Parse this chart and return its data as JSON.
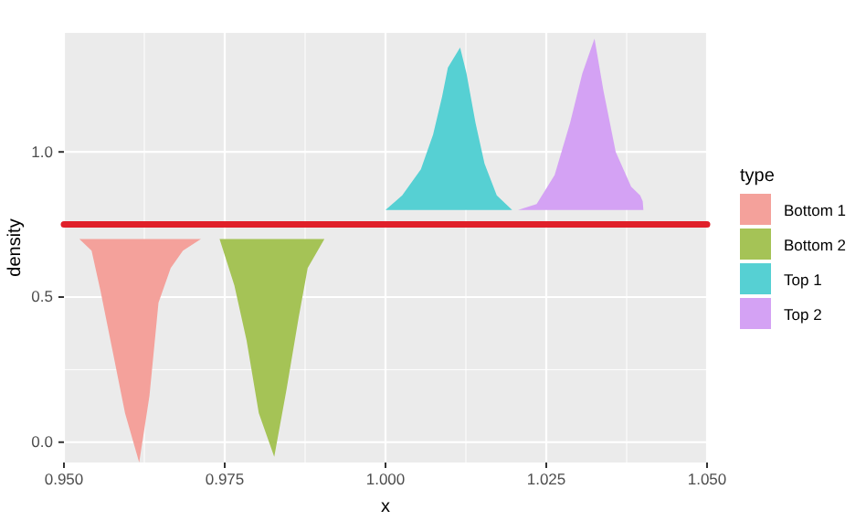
{
  "chart_data": {
    "type": "area",
    "xlabel": "x",
    "ylabel": "density",
    "legend_title": "type",
    "legend": "right",
    "grid": true,
    "xlim": [
      0.95,
      1.05
    ],
    "ylim": [
      -0.07,
      1.41
    ],
    "xticks": [
      {
        "value": 0.95,
        "label": "0.950"
      },
      {
        "value": 0.975,
        "label": "0.975"
      },
      {
        "value": 1.0,
        "label": "1.000"
      },
      {
        "value": 1.025,
        "label": "1.025"
      },
      {
        "value": 1.05,
        "label": "1.050"
      }
    ],
    "yticks": [
      {
        "value": 0,
        "label": "0.0"
      },
      {
        "value": 0.5,
        "label": "0.5"
      },
      {
        "value": 1.0,
        "label": "1.0"
      }
    ],
    "ref_lines": [
      {
        "axis": "y",
        "value": 0.75,
        "color": "#e0202a"
      }
    ],
    "series": [
      {
        "name": "Bottom 1",
        "color": "#f4a19b",
        "x": [
          0.9524,
          0.9543,
          0.9557,
          0.9576,
          0.9595,
          0.9617,
          0.9633,
          0.9647,
          0.9666,
          0.9685,
          0.9713
        ],
        "values": [
          0.7,
          0.66,
          0.52,
          0.31,
          0.1,
          -0.07,
          0.16,
          0.48,
          0.6,
          0.66,
          0.7
        ]
      },
      {
        "name": "Bottom 2",
        "color": "#a5c356",
        "x": [
          0.9742,
          0.9765,
          0.9784,
          0.9803,
          0.9827,
          0.9846,
          0.9865,
          0.9879,
          0.9905
        ],
        "values": [
          0.7,
          0.54,
          0.35,
          0.1,
          -0.05,
          0.18,
          0.43,
          0.6,
          0.7
        ]
      },
      {
        "name": "Top 1",
        "color": "#56d0d3",
        "x": [
          1.0,
          1.0026,
          1.0055,
          1.0074,
          1.0088,
          1.0097,
          1.0116,
          1.0126,
          1.014,
          1.0154,
          1.0173,
          1.0197
        ],
        "values": [
          0.8,
          0.85,
          0.94,
          1.06,
          1.19,
          1.29,
          1.36,
          1.27,
          1.1,
          0.96,
          0.85,
          0.8
        ]
      },
      {
        "name": "Top 2",
        "color": "#d4a2f4",
        "x": [
          1.0206,
          1.0235,
          1.0263,
          1.0287,
          1.0306,
          1.0325,
          1.0339,
          1.0358,
          1.0382,
          1.0396,
          1.04,
          1.0401
        ],
        "values": [
          0.8,
          0.82,
          0.92,
          1.1,
          1.27,
          1.39,
          1.21,
          1.0,
          0.88,
          0.85,
          0.83,
          0.8
        ]
      }
    ]
  }
}
